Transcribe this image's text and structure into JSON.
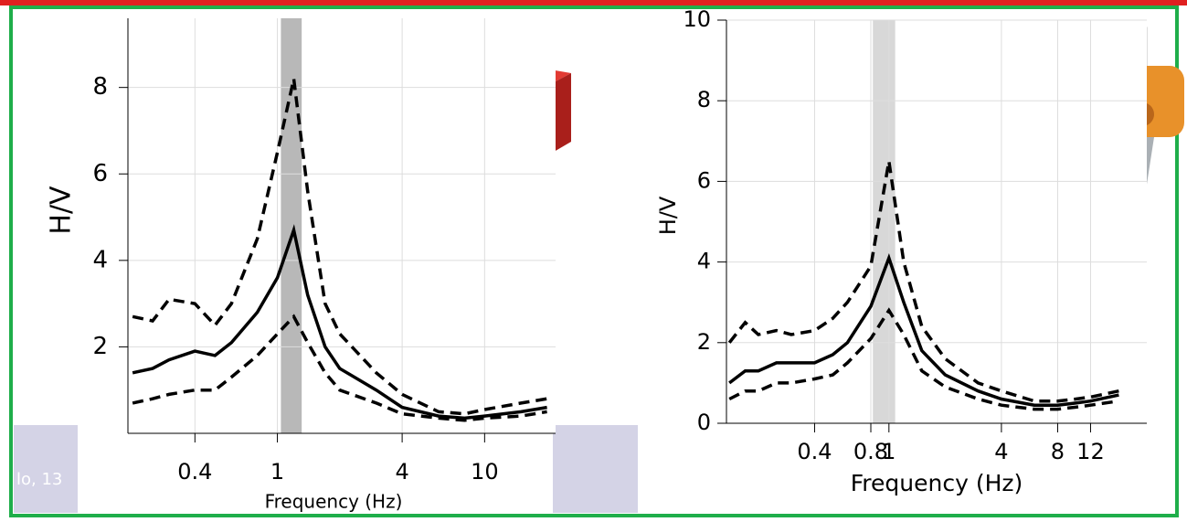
{
  "slide_fragment": "lo, 13",
  "chart_data": [
    {
      "type": "line",
      "xlabel": "Frequency (Hz)",
      "ylabel": "H/V",
      "log_x": true,
      "grid": true,
      "xlim": [
        0.19,
        22
      ],
      "xticks": [
        0.4,
        1,
        4,
        10
      ],
      "ylim": [
        0,
        9.6
      ],
      "yticks": [
        2,
        4,
        6,
        8
      ],
      "band_x": [
        1.04,
        1.31
      ],
      "band_color": "#9a9a9a",
      "x": [
        0.2,
        0.25,
        0.3,
        0.4,
        0.5,
        0.6,
        0.8,
        1.0,
        1.2,
        1.4,
        1.7,
        2,
        3,
        4,
        6,
        8,
        10,
        15,
        20
      ],
      "series": [
        {
          "color": "#000000",
          "dashed": false,
          "values": [
            1.4,
            1.5,
            1.7,
            1.9,
            1.8,
            2.1,
            2.8,
            3.6,
            4.7,
            3.2,
            2.0,
            1.5,
            1.0,
            0.6,
            0.4,
            0.35,
            0.4,
            0.5,
            0.6
          ]
        },
        {
          "color": "#000000",
          "dashed": true,
          "values": [
            2.7,
            2.6,
            3.1,
            3.0,
            2.5,
            3.0,
            4.5,
            6.5,
            8.2,
            5.6,
            3.0,
            2.3,
            1.4,
            0.9,
            0.5,
            0.45,
            0.55,
            0.7,
            0.8
          ]
        },
        {
          "color": "#000000",
          "dashed": true,
          "values": [
            0.7,
            0.8,
            0.9,
            1.0,
            1.0,
            1.3,
            1.8,
            2.3,
            2.7,
            2.1,
            1.4,
            1.0,
            0.7,
            0.45,
            0.35,
            0.3,
            0.35,
            0.4,
            0.5
          ]
        }
      ]
    },
    {
      "type": "line",
      "xlabel": "Frequency (Hz)",
      "ylabel": "H/V",
      "log_x": true,
      "grid": true,
      "xlim": [
        0.135,
        24
      ],
      "xticks": [
        0.4,
        0.8,
        1,
        4,
        8,
        12
      ],
      "ylim": [
        0,
        10
      ],
      "yticks": [
        0,
        2,
        4,
        6,
        8,
        10
      ],
      "band_x": [
        0.82,
        1.08
      ],
      "band_color": "#c8c8c8",
      "x": [
        0.14,
        0.17,
        0.2,
        0.25,
        0.3,
        0.4,
        0.5,
        0.6,
        0.8,
        1.0,
        1.2,
        1.5,
        2,
        3,
        4,
        6,
        8,
        10,
        12,
        17
      ],
      "series": [
        {
          "color": "#000000",
          "dashed": false,
          "values": [
            1.0,
            1.3,
            1.3,
            1.5,
            1.5,
            1.5,
            1.7,
            2.0,
            2.9,
            4.1,
            3.0,
            1.8,
            1.2,
            0.8,
            0.6,
            0.45,
            0.45,
            0.5,
            0.55,
            0.7
          ]
        },
        {
          "color": "#000000",
          "dashed": true,
          "values": [
            2.0,
            2.5,
            2.2,
            2.3,
            2.2,
            2.3,
            2.6,
            3.0,
            3.9,
            6.5,
            4.0,
            2.4,
            1.6,
            1.0,
            0.8,
            0.55,
            0.55,
            0.6,
            0.65,
            0.8
          ]
        },
        {
          "color": "#000000",
          "dashed": true,
          "values": [
            0.6,
            0.8,
            0.8,
            1.0,
            1.0,
            1.1,
            1.2,
            1.5,
            2.1,
            2.8,
            2.2,
            1.3,
            0.9,
            0.6,
            0.45,
            0.35,
            0.35,
            0.4,
            0.45,
            0.55
          ]
        }
      ]
    }
  ]
}
